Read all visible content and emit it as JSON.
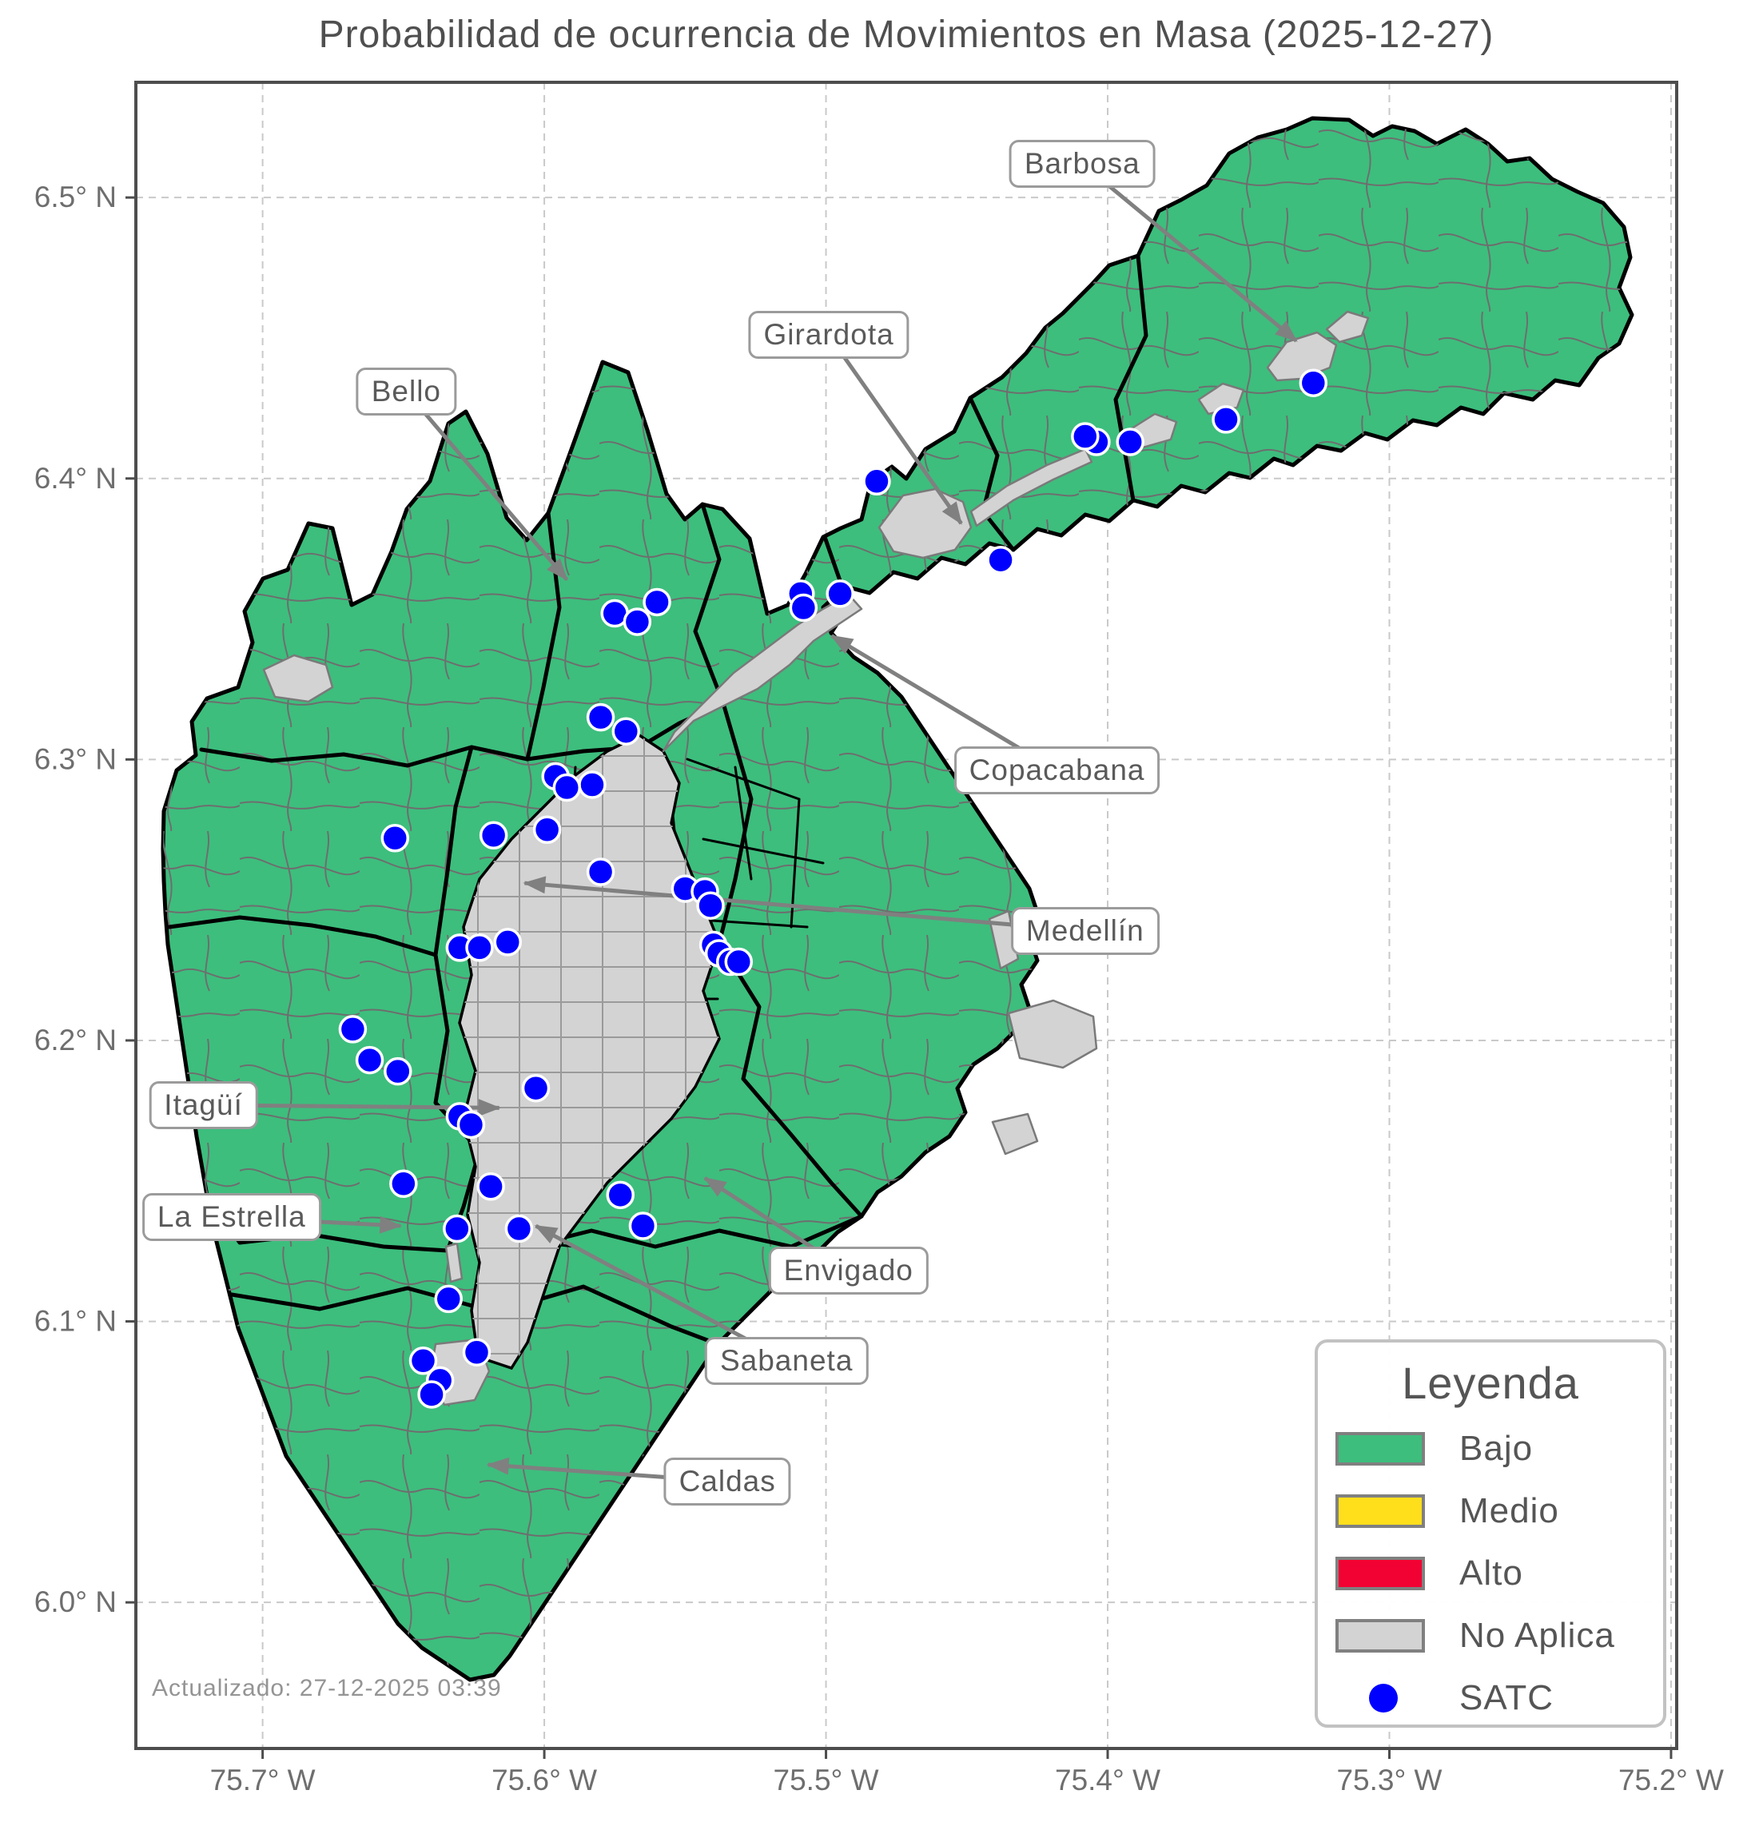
{
  "title": "Probabilidad de ocurrencia de Movimientos en Masa (2025-12-27)",
  "updated_text": "Actualizado: 27-12-2025 03:39",
  "axes": {
    "lon_west": 75.745,
    "lon_east": 75.198,
    "lat_north": 6.541,
    "lat_south": 5.948,
    "x_ticks": [
      {
        "label": "75.7° W",
        "value": 75.7
      },
      {
        "label": "75.6° W",
        "value": 75.6
      },
      {
        "label": "75.5° W",
        "value": 75.5
      },
      {
        "label": "75.4° W",
        "value": 75.4
      },
      {
        "label": "75.3° W",
        "value": 75.3
      },
      {
        "label": "75.2° W",
        "value": 75.2
      }
    ],
    "y_ticks": [
      {
        "label": "6.5° N",
        "value": 6.5
      },
      {
        "label": "6.4° N",
        "value": 6.4
      },
      {
        "label": "6.3° N",
        "value": 6.3
      },
      {
        "label": "6.2° N",
        "value": 6.2
      },
      {
        "label": "6.1° N",
        "value": 6.1
      },
      {
        "label": "6.0° N",
        "value": 6.0
      }
    ]
  },
  "legend": {
    "title": "Leyenda",
    "items": [
      {
        "label": "Bajo",
        "color": "#3dbe7d",
        "kind": "swatch"
      },
      {
        "label": "Medio",
        "color": "#ffdf1b",
        "kind": "swatch"
      },
      {
        "label": "Alto",
        "color": "#f20233",
        "kind": "swatch"
      },
      {
        "label": "No Aplica",
        "color": "#d3d3d3",
        "kind": "swatch"
      },
      {
        "label": "SATC",
        "color": "#0000ff",
        "kind": "dot"
      }
    ]
  },
  "map": {
    "colors": {
      "low": "#3dbe7d",
      "no_aplica": "#d3d3d3",
      "satc_dot": "#0000ff",
      "municipal_border": "#000000",
      "vereda_border": "#6e6e6e",
      "arrow": "#808080",
      "grid": "#c9c9c9"
    },
    "place_labels": [
      {
        "slug": "barbosa",
        "name": "Barbosa",
        "lon": 75.409,
        "lat": 6.512,
        "tip_lon": 75.333,
        "tip_lat": 6.449
      },
      {
        "slug": "girardota",
        "name": "Girardota",
        "lon": 75.499,
        "lat": 6.451,
        "tip_lon": 75.452,
        "tip_lat": 6.384
      },
      {
        "slug": "bello",
        "name": "Bello",
        "lon": 75.649,
        "lat": 6.431,
        "tip_lon": 75.592,
        "tip_lat": 6.364
      },
      {
        "slug": "copacabana",
        "name": "Copacabana",
        "lon": 75.418,
        "lat": 6.296,
        "tip_lon": 75.498,
        "tip_lat": 6.344
      },
      {
        "slug": "medellin",
        "name": "Medellín",
        "lon": 75.408,
        "lat": 6.239,
        "tip_lon": 75.607,
        "tip_lat": 6.256
      },
      {
        "slug": "itagui",
        "name": "Itagüí",
        "lon": 75.721,
        "lat": 6.177,
        "tip_lon": 75.616,
        "tip_lat": 6.176
      },
      {
        "slug": "la-estrella",
        "name": "La Estrella",
        "lon": 75.711,
        "lat": 6.137,
        "tip_lon": 75.651,
        "tip_lat": 6.134
      },
      {
        "slug": "envigado",
        "name": "Envigado",
        "lon": 75.492,
        "lat": 6.118,
        "tip_lon": 75.543,
        "tip_lat": 6.151
      },
      {
        "slug": "sabaneta",
        "name": "Sabaneta",
        "lon": 75.514,
        "lat": 6.086,
        "tip_lon": 75.603,
        "tip_lat": 6.134
      },
      {
        "slug": "caldas",
        "name": "Caldas",
        "lon": 75.535,
        "lat": 6.043,
        "tip_lon": 75.62,
        "tip_lat": 6.049
      }
    ],
    "satc_points": [
      [
        75.327,
        6.434
      ],
      [
        75.358,
        6.421
      ],
      [
        75.392,
        6.413
      ],
      [
        75.404,
        6.413
      ],
      [
        75.408,
        6.415
      ],
      [
        75.438,
        6.371
      ],
      [
        75.482,
        6.399
      ],
      [
        75.495,
        6.359
      ],
      [
        75.509,
        6.359
      ],
      [
        75.508,
        6.354
      ],
      [
        75.56,
        6.356
      ],
      [
        75.575,
        6.352
      ],
      [
        75.567,
        6.349
      ],
      [
        75.58,
        6.315
      ],
      [
        75.571,
        6.31
      ],
      [
        75.596,
        6.294
      ],
      [
        75.583,
        6.291
      ],
      [
        75.592,
        6.29
      ],
      [
        75.653,
        6.272
      ],
      [
        75.618,
        6.273
      ],
      [
        75.599,
        6.275
      ],
      [
        75.58,
        6.26
      ],
      [
        75.55,
        6.254
      ],
      [
        75.543,
        6.253
      ],
      [
        75.541,
        6.248
      ],
      [
        75.63,
        6.233
      ],
      [
        75.623,
        6.233
      ],
      [
        75.613,
        6.235
      ],
      [
        75.54,
        6.234
      ],
      [
        75.538,
        6.231
      ],
      [
        75.534,
        6.228
      ],
      [
        75.531,
        6.228
      ],
      [
        75.668,
        6.204
      ],
      [
        75.662,
        6.193
      ],
      [
        75.652,
        6.189
      ],
      [
        75.603,
        6.183
      ],
      [
        75.63,
        6.173
      ],
      [
        75.626,
        6.17
      ],
      [
        75.65,
        6.149
      ],
      [
        75.619,
        6.148
      ],
      [
        75.573,
        6.145
      ],
      [
        75.565,
        6.134
      ],
      [
        75.631,
        6.133
      ],
      [
        75.609,
        6.133
      ],
      [
        75.634,
        6.108
      ],
      [
        75.624,
        6.089
      ],
      [
        75.643,
        6.086
      ],
      [
        75.637,
        6.079
      ],
      [
        75.64,
        6.074
      ]
    ]
  }
}
